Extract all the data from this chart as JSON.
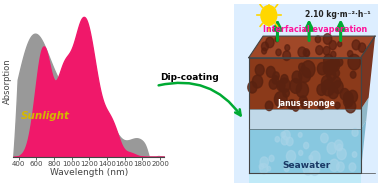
{
  "fig_width": 3.78,
  "fig_height": 1.89,
  "dpi": 100,
  "bg_color": "#ffffff",
  "sunlight_color": "#999999",
  "polymer_color": "#f0186a",
  "polymer_alpha": 1.0,
  "sunlight_label": "Sunlight",
  "sunlight_label_color": "#d4b800",
  "xlabel": "Wavelength (nm)",
  "ylabel": "Absorption",
  "xticks": [
    400,
    600,
    800,
    1000,
    1200,
    1400,
    1600,
    1800,
    2000
  ],
  "xlim": [
    340,
    2050
  ],
  "ylim": [
    0,
    1.08
  ],
  "axis_color": "#444444",
  "tick_fontsize": 5.0,
  "label_fontsize": 6.0,
  "xlabel_fontsize": 6.5,
  "sunlight_label_fontsize": 7.5,
  "right_panel_title": "2.10 kg·m⁻²·h⁻¹",
  "interfacial_text": "Interfacial evaporation",
  "janus_text": "Janus sponge",
  "seawater_text": "Seawater",
  "dip_coating_text": "Dip-coating",
  "right_box_edge_color": "#5577bb",
  "right_box_face_color": "#ddeeff",
  "sun_color": "#FFD700",
  "arrow_green": "#00aa33",
  "interfacial_color": "#ff1199",
  "rate_color": "#222222",
  "sponge_top_color": "#8b3a1a",
  "sponge_top_dark": "#5a2210",
  "sponge_bottom_color": "#b8d8e8",
  "water_color": "#88c8e0",
  "water_deep_color": "#b0ddf0",
  "seawater_text_color": "#1a3a66"
}
